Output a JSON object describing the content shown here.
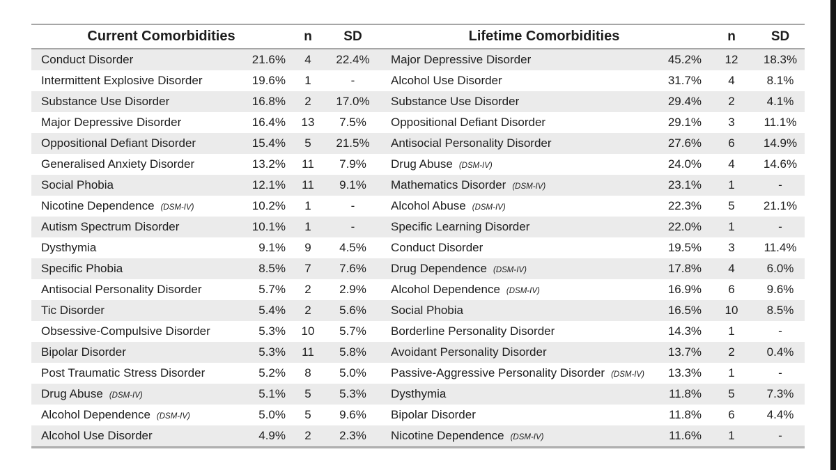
{
  "colors": {
    "stripe": "#ebebeb",
    "border": "#a6a6a6",
    "text": "#1d1d1d",
    "edge_bar": "#161616"
  },
  "table": {
    "left": {
      "title": "Current Comorbidities",
      "n_label": "n",
      "sd_label": "SD"
    },
    "right": {
      "title": "Lifetime Comorbidities",
      "n_label": "n",
      "sd_label": "SD"
    },
    "rows": [
      {
        "current": {
          "name": "Conduct Disorder",
          "dsm": "",
          "pct": "21.6%",
          "n": "4",
          "sd": "22.4%"
        },
        "lifetime": {
          "name": "Major Depressive Disorder",
          "dsm": "",
          "pct": "45.2%",
          "n": "12",
          "sd": "18.3%"
        }
      },
      {
        "current": {
          "name": "Intermittent Explosive Disorder",
          "dsm": "",
          "pct": "19.6%",
          "n": "1",
          "sd": "-"
        },
        "lifetime": {
          "name": "Alcohol Use Disorder",
          "dsm": "",
          "pct": "31.7%",
          "n": "4",
          "sd": "8.1%"
        }
      },
      {
        "current": {
          "name": "Substance Use Disorder",
          "dsm": "",
          "pct": "16.8%",
          "n": "2",
          "sd": "17.0%"
        },
        "lifetime": {
          "name": "Substance Use Disorder",
          "dsm": "",
          "pct": "29.4%",
          "n": "2",
          "sd": "4.1%"
        }
      },
      {
        "current": {
          "name": "Major Depressive Disorder",
          "dsm": "",
          "pct": "16.4%",
          "n": "13",
          "sd": "7.5%"
        },
        "lifetime": {
          "name": "Oppositional Defiant Disorder",
          "dsm": "",
          "pct": "29.1%",
          "n": "3",
          "sd": "11.1%"
        }
      },
      {
        "current": {
          "name": "Oppositional Defiant Disorder",
          "dsm": "",
          "pct": "15.4%",
          "n": "5",
          "sd": "21.5%"
        },
        "lifetime": {
          "name": "Antisocial Personality Disorder",
          "dsm": "",
          "pct": "27.6%",
          "n": "6",
          "sd": "14.9%"
        }
      },
      {
        "current": {
          "name": "Generalised Anxiety Disorder",
          "dsm": "",
          "pct": "13.2%",
          "n": "11",
          "sd": "7.9%"
        },
        "lifetime": {
          "name": "Drug Abuse",
          "dsm": "(DSM-IV)",
          "pct": "24.0%",
          "n": "4",
          "sd": "14.6%"
        }
      },
      {
        "current": {
          "name": "Social Phobia",
          "dsm": "",
          "pct": "12.1%",
          "n": "11",
          "sd": "9.1%"
        },
        "lifetime": {
          "name": "Mathematics Disorder",
          "dsm": "(DSM-IV)",
          "pct": "23.1%",
          "n": "1",
          "sd": "-"
        }
      },
      {
        "current": {
          "name": "Nicotine Dependence",
          "dsm": "(DSM-IV)",
          "pct": "10.2%",
          "n": "1",
          "sd": "-"
        },
        "lifetime": {
          "name": "Alcohol Abuse",
          "dsm": "(DSM-IV)",
          "pct": "22.3%",
          "n": "5",
          "sd": "21.1%"
        }
      },
      {
        "current": {
          "name": "Autism Spectrum Disorder",
          "dsm": "",
          "pct": "10.1%",
          "n": "1",
          "sd": "-"
        },
        "lifetime": {
          "name": "Specific Learning Disorder",
          "dsm": "",
          "pct": "22.0%",
          "n": "1",
          "sd": "-"
        }
      },
      {
        "current": {
          "name": "Dysthymia",
          "dsm": "",
          "pct": "9.1%",
          "n": "9",
          "sd": "4.5%"
        },
        "lifetime": {
          "name": "Conduct Disorder",
          "dsm": "",
          "pct": "19.5%",
          "n": "3",
          "sd": "11.4%"
        }
      },
      {
        "current": {
          "name": "Specific Phobia",
          "dsm": "",
          "pct": "8.5%",
          "n": "7",
          "sd": "7.6%"
        },
        "lifetime": {
          "name": "Drug Dependence",
          "dsm": "(DSM-IV)",
          "pct": "17.8%",
          "n": "4",
          "sd": "6.0%"
        }
      },
      {
        "current": {
          "name": "Antisocial Personality Disorder",
          "dsm": "",
          "pct": "5.7%",
          "n": "2",
          "sd": "2.9%"
        },
        "lifetime": {
          "name": "Alcohol Dependence",
          "dsm": "(DSM-IV)",
          "pct": "16.9%",
          "n": "6",
          "sd": "9.6%"
        }
      },
      {
        "current": {
          "name": "Tic Disorder",
          "dsm": "",
          "pct": "5.4%",
          "n": "2",
          "sd": "5.6%"
        },
        "lifetime": {
          "name": "Social Phobia",
          "dsm": "",
          "pct": "16.5%",
          "n": "10",
          "sd": "8.5%"
        }
      },
      {
        "current": {
          "name": "Obsessive-Compulsive Disorder",
          "dsm": "",
          "pct": "5.3%",
          "n": "10",
          "sd": "5.7%"
        },
        "lifetime": {
          "name": "Borderline Personality Disorder",
          "dsm": "",
          "pct": "14.3%",
          "n": "1",
          "sd": "-"
        }
      },
      {
        "current": {
          "name": "Bipolar Disorder",
          "dsm": "",
          "pct": "5.3%",
          "n": "11",
          "sd": "5.8%"
        },
        "lifetime": {
          "name": "Avoidant Personality Disorder",
          "dsm": "",
          "pct": "13.7%",
          "n": "2",
          "sd": "0.4%"
        }
      },
      {
        "current": {
          "name": "Post Traumatic Stress Disorder",
          "dsm": "",
          "pct": "5.2%",
          "n": "8",
          "sd": "5.0%"
        },
        "lifetime": {
          "name": "Passive-Aggressive Personality Disorder",
          "dsm": "(DSM-IV)",
          "pct": "13.3%",
          "n": "1",
          "sd": "-"
        }
      },
      {
        "current": {
          "name": "Drug Abuse",
          "dsm": "(DSM-IV)",
          "pct": "5.1%",
          "n": "5",
          "sd": "5.3%"
        },
        "lifetime": {
          "name": "Dysthymia",
          "dsm": "",
          "pct": "11.8%",
          "n": "5",
          "sd": "7.3%"
        }
      },
      {
        "current": {
          "name": "Alcohol Dependence",
          "dsm": "(DSM-IV)",
          "pct": "5.0%",
          "n": "5",
          "sd": "9.6%"
        },
        "lifetime": {
          "name": "Bipolar Disorder",
          "dsm": "",
          "pct": "11.8%",
          "n": "6",
          "sd": "4.4%"
        }
      },
      {
        "current": {
          "name": "Alcohol Use Disorder",
          "dsm": "",
          "pct": "4.9%",
          "n": "2",
          "sd": "2.3%"
        },
        "lifetime": {
          "name": "Nicotine Dependence",
          "dsm": "(DSM-IV)",
          "pct": "11.6%",
          "n": "1",
          "sd": "-"
        }
      }
    ]
  }
}
